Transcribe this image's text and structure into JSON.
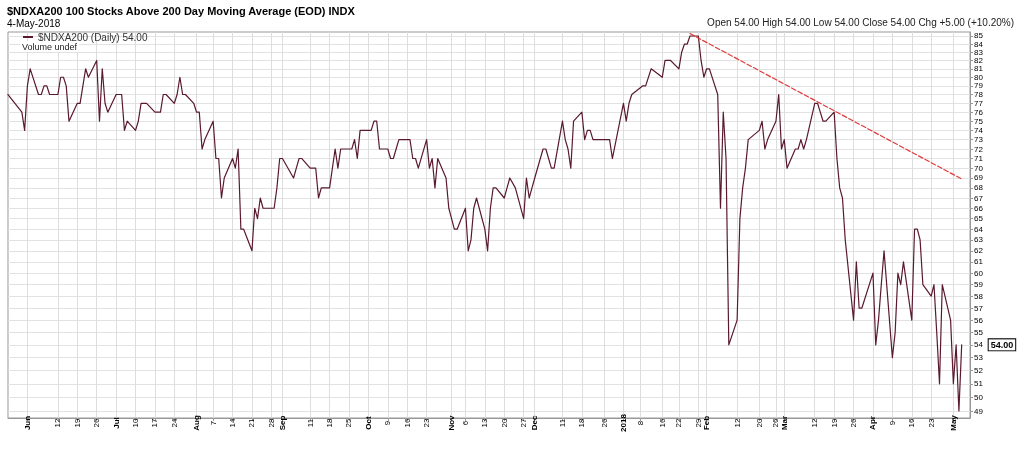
{
  "chart_data": {
    "type": "line",
    "title": "$NDXA200 100 Stocks Above 200 Day Moving Average (EOD) INDX",
    "subtitle": "4-May-2018",
    "annotations": [
      "Open 54.00 High 54.00 Low 54.00 Close 54.00 Chg +5.00 (+10.20%)",
      "Volume undef",
      "54.00"
    ],
    "series": [
      {
        "name": "$NDXA200 (Daily) 54.00",
        "color": "#5a1a2e",
        "x": [
          "2017-05-25",
          "2017-05-30",
          "2017-05-31",
          "2017-06-01",
          "2017-06-02",
          "2017-06-05",
          "2017-06-06",
          "2017-06-07",
          "2017-06-08",
          "2017-06-09",
          "2017-06-12",
          "2017-06-13",
          "2017-06-14",
          "2017-06-15",
          "2017-06-16",
          "2017-06-19",
          "2017-06-20",
          "2017-06-22",
          "2017-06-23",
          "2017-06-26",
          "2017-06-27",
          "2017-06-28",
          "2017-06-29",
          "2017-06-30",
          "2017-07-03",
          "2017-07-05",
          "2017-07-06",
          "2017-07-07",
          "2017-07-10",
          "2017-07-11",
          "2017-07-12",
          "2017-07-14",
          "2017-07-17",
          "2017-07-19",
          "2017-07-20",
          "2017-07-21",
          "2017-07-24",
          "2017-07-25",
          "2017-07-26",
          "2017-07-27",
          "2017-07-28",
          "2017-07-31",
          "2017-08-01",
          "2017-08-02",
          "2017-08-03",
          "2017-08-04",
          "2017-08-07",
          "2017-08-08",
          "2017-08-09",
          "2017-08-10",
          "2017-08-11",
          "2017-08-14",
          "2017-08-15",
          "2017-08-16",
          "2017-08-17",
          "2017-08-18",
          "2017-08-21",
          "2017-08-22",
          "2017-08-23",
          "2017-08-24",
          "2017-08-25",
          "2017-08-29",
          "2017-08-30",
          "2017-08-31",
          "2017-09-01",
          "2017-09-05",
          "2017-09-06",
          "2017-09-07",
          "2017-09-08",
          "2017-09-11",
          "2017-09-13",
          "2017-09-14",
          "2017-09-15",
          "2017-09-18",
          "2017-09-20",
          "2017-09-21",
          "2017-09-22",
          "2017-09-25",
          "2017-09-26",
          "2017-09-27",
          "2017-09-28",
          "2017-09-29",
          "2017-10-02",
          "2017-10-03",
          "2017-10-04",
          "2017-10-05",
          "2017-10-06",
          "2017-10-09",
          "2017-10-10",
          "2017-10-11",
          "2017-10-12",
          "2017-10-13",
          "2017-10-16",
          "2017-10-17",
          "2017-10-18",
          "2017-10-19",
          "2017-10-20",
          "2017-10-23",
          "2017-10-24",
          "2017-10-25",
          "2017-10-26",
          "2017-10-27",
          "2017-10-30",
          "2017-10-31",
          "2017-11-01",
          "2017-11-02",
          "2017-11-03",
          "2017-11-06",
          "2017-11-07",
          "2017-11-08",
          "2017-11-09",
          "2017-11-10",
          "2017-11-13",
          "2017-11-14",
          "2017-11-15",
          "2017-11-16",
          "2017-11-17",
          "2017-11-20",
          "2017-11-21",
          "2017-11-22",
          "2017-11-24",
          "2017-11-27",
          "2017-11-28",
          "2017-11-29",
          "2017-11-30",
          "2017-12-01",
          "2017-12-04",
          "2017-12-05",
          "2017-12-06",
          "2017-12-07",
          "2017-12-08",
          "2017-12-11",
          "2017-12-12",
          "2017-12-13",
          "2017-12-14",
          "2017-12-15",
          "2017-12-18",
          "2017-12-19",
          "2017-12-20",
          "2017-12-21",
          "2017-12-22",
          "2017-12-26",
          "2017-12-27",
          "2017-12-28",
          "2017-12-29",
          "2018-01-02",
          "2018-01-03",
          "2018-01-04",
          "2018-01-05",
          "2018-01-09",
          "2018-01-10",
          "2018-01-12",
          "2018-01-16",
          "2018-01-17",
          "2018-01-18",
          "2018-01-19",
          "2018-01-22",
          "2018-01-23",
          "2018-01-24",
          "2018-01-25",
          "2018-01-26",
          "2018-01-29",
          "2018-01-30",
          "2018-01-31",
          "2018-02-01",
          "2018-02-02",
          "2018-02-05",
          "2018-02-06",
          "2018-02-07",
          "2018-02-08",
          "2018-02-09",
          "2018-02-12",
          "2018-02-13",
          "2018-02-14",
          "2018-02-15",
          "2018-02-16",
          "2018-02-20",
          "2018-02-21",
          "2018-02-22",
          "2018-02-23",
          "2018-02-26",
          "2018-02-27",
          "2018-02-28",
          "2018-03-01",
          "2018-03-02",
          "2018-03-05",
          "2018-03-06",
          "2018-03-07",
          "2018-03-08",
          "2018-03-09",
          "2018-03-12",
          "2018-03-13",
          "2018-03-14",
          "2018-03-15",
          "2018-03-16",
          "2018-03-19",
          "2018-03-20",
          "2018-03-21",
          "2018-03-22",
          "2018-03-23",
          "2018-03-26",
          "2018-03-27",
          "2018-03-28",
          "2018-03-29",
          "2018-04-02",
          "2018-04-03",
          "2018-04-04",
          "2018-04-05",
          "2018-04-06",
          "2018-04-09",
          "2018-04-10",
          "2018-04-11",
          "2018-04-12",
          "2018-04-13",
          "2018-04-16",
          "2018-04-17",
          "2018-04-18",
          "2018-04-19",
          "2018-04-20",
          "2018-04-23",
          "2018-04-24",
          "2018-04-25",
          "2018-04-26",
          "2018-04-27",
          "2018-04-30",
          "2018-05-01",
          "2018-05-02",
          "2018-05-03",
          "2018-05-04"
        ],
        "values": [
          78,
          76,
          74,
          79,
          81,
          78,
          78,
          79,
          79,
          78,
          78,
          80,
          80,
          79,
          75,
          77,
          77,
          81,
          80,
          82,
          75,
          81,
          77,
          76,
          78,
          78,
          74,
          75,
          74,
          75,
          77,
          77,
          76,
          76,
          78,
          78,
          77,
          78,
          80,
          78,
          78,
          77,
          76,
          76,
          72,
          73,
          75,
          71,
          71,
          67,
          69,
          71,
          70,
          72,
          64,
          64,
          62,
          66,
          65,
          67,
          66,
          66,
          68,
          71,
          71,
          69,
          70,
          71,
          71,
          70,
          70,
          67,
          68,
          68,
          72,
          70,
          72,
          72,
          72,
          73,
          71,
          74,
          74,
          74,
          75,
          75,
          72,
          72,
          71,
          71,
          72,
          73,
          73,
          73,
          71,
          71,
          70,
          73,
          70,
          71,
          68,
          71,
          69,
          66,
          65,
          64,
          64,
          66,
          62,
          63,
          66,
          67,
          64,
          62,
          66,
          68,
          68,
          67,
          68,
          69,
          68,
          65,
          69,
          67,
          68,
          69,
          72,
          72,
          71,
          70,
          70,
          75,
          73,
          72,
          70,
          75,
          76,
          73,
          74,
          74,
          73,
          73,
          73,
          73,
          71,
          77,
          75,
          77,
          78,
          79,
          79,
          81,
          80,
          82,
          82,
          82,
          81,
          83,
          84,
          84,
          85,
          85,
          82,
          80,
          81,
          81,
          78,
          66,
          76,
          71,
          54,
          56,
          65,
          68,
          70,
          73,
          74,
          75,
          72,
          73,
          75,
          78,
          72,
          73,
          70,
          72,
          72,
          73,
          72,
          73,
          77,
          77,
          76,
          75,
          75,
          76,
          71,
          68,
          67,
          63,
          56,
          61,
          57,
          57,
          60,
          54,
          56,
          59,
          62,
          53,
          55,
          60,
          59,
          61,
          56,
          64,
          64,
          63,
          59,
          58,
          59,
          55,
          51,
          59,
          56,
          51,
          54,
          49,
          54
        ]
      },
      {
        "type": "line",
        "color": "#e03a3a",
        "line_style": "dashed",
        "x": [
          "2018-01-26",
          "2018-05-04"
        ],
        "values": [
          85.3,
          68.9
        ]
      }
    ],
    "xlim": [
      "2017-05-25",
      "2018-05-07"
    ],
    "xticks": [
      {
        "value": "2017-06-01",
        "label": "Jun"
      },
      {
        "value": "2017-06-12",
        "label": "12"
      },
      {
        "value": "2017-06-19",
        "label": "19"
      },
      {
        "value": "2017-06-26",
        "label": "26"
      },
      {
        "value": "2017-07-03",
        "label": "Jul"
      },
      {
        "value": "2017-07-10",
        "label": "10"
      },
      {
        "value": "2017-07-17",
        "label": "17"
      },
      {
        "value": "2017-07-24",
        "label": "24"
      },
      {
        "value": "2017-08-01",
        "label": "Aug"
      },
      {
        "value": "2017-08-07",
        "label": "7"
      },
      {
        "value": "2017-08-14",
        "label": "14"
      },
      {
        "value": "2017-08-21",
        "label": "21"
      },
      {
        "value": "2017-08-28",
        "label": "28"
      },
      {
        "value": "2017-09-01",
        "label": "Sep"
      },
      {
        "value": "2017-09-11",
        "label": "11"
      },
      {
        "value": "2017-09-18",
        "label": "18"
      },
      {
        "value": "2017-09-25",
        "label": "25"
      },
      {
        "value": "2017-10-02",
        "label": "Oct"
      },
      {
        "value": "2017-10-09",
        "label": "9"
      },
      {
        "value": "2017-10-16",
        "label": "16"
      },
      {
        "value": "2017-10-23",
        "label": "23"
      },
      {
        "value": "2017-11-01",
        "label": "Nov"
      },
      {
        "value": "2017-11-06",
        "label": "6"
      },
      {
        "value": "2017-11-13",
        "label": "13"
      },
      {
        "value": "2017-11-20",
        "label": "20"
      },
      {
        "value": "2017-11-27",
        "label": "27"
      },
      {
        "value": "2017-12-01",
        "label": "Dec"
      },
      {
        "value": "2017-12-11",
        "label": "11"
      },
      {
        "value": "2017-12-18",
        "label": "18"
      },
      {
        "value": "2017-12-26",
        "label": "26"
      },
      {
        "value": "2018-01-02",
        "label": "2018"
      },
      {
        "value": "2018-01-08",
        "label": "8"
      },
      {
        "value": "2018-01-16",
        "label": "16"
      },
      {
        "value": "2018-01-22",
        "label": "22"
      },
      {
        "value": "2018-01-29",
        "label": "29"
      },
      {
        "value": "2018-02-01",
        "label": "Feb"
      },
      {
        "value": "2018-02-12",
        "label": "12"
      },
      {
        "value": "2018-02-20",
        "label": "20"
      },
      {
        "value": "2018-02-26",
        "label": "26"
      },
      {
        "value": "2018-03-01",
        "label": "Mar"
      },
      {
        "value": "2018-03-12",
        "label": "12"
      },
      {
        "value": "2018-03-19",
        "label": "19"
      },
      {
        "value": "2018-03-26",
        "label": "26"
      },
      {
        "value": "2018-04-02",
        "label": "Apr"
      },
      {
        "value": "2018-04-09",
        "label": "9"
      },
      {
        "value": "2018-04-16",
        "label": "16"
      },
      {
        "value": "2018-04-23",
        "label": "23"
      },
      {
        "value": "2018-05-01",
        "label": "May"
      }
    ],
    "ylim": [
      48.5,
      85.5
    ],
    "yticks": [
      49,
      50,
      51,
      52,
      53,
      54,
      55,
      56,
      57,
      58,
      59,
      60,
      61,
      62,
      63,
      64,
      65,
      66,
      67,
      68,
      69,
      70,
      71,
      72,
      73,
      74,
      75,
      76,
      77,
      78,
      79,
      80,
      81,
      82,
      83,
      84,
      85
    ],
    "log": true,
    "grid": true,
    "legend": "top left",
    "marker": "none"
  }
}
